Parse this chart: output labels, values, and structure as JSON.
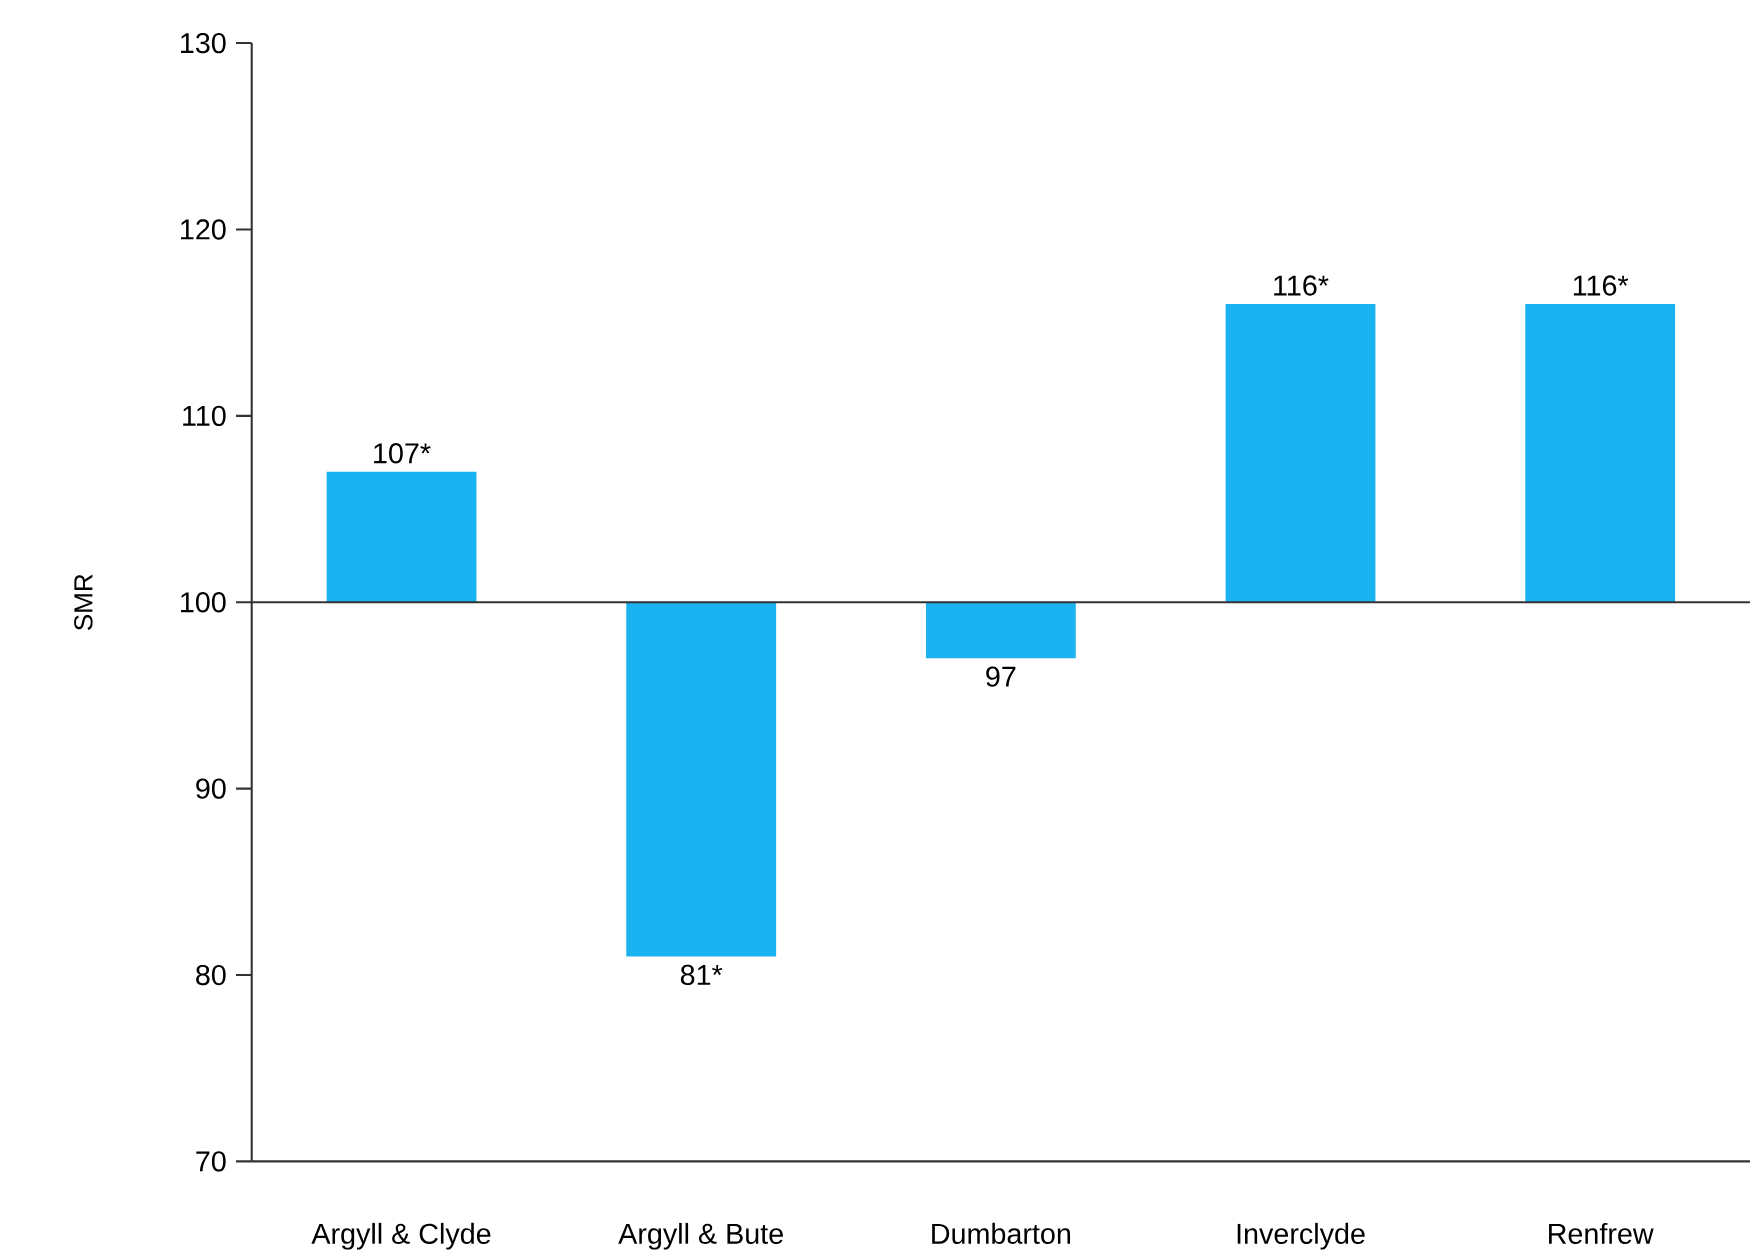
{
  "chart_data": {
    "type": "bar",
    "ylabel": "SMR",
    "categories": [
      "Argyll & Clyde",
      "Argyll & Bute",
      "Dumbarton",
      "Inverclyde",
      "Renfrew"
    ],
    "values": [
      7,
      -19,
      -3,
      16,
      16
    ],
    "base": [
      100,
      100,
      100,
      100,
      100
    ],
    "value_labels": [
      "107*",
      "81*",
      "97",
      "116*",
      "116*"
    ],
    "color": "#1ab2f0",
    "ylim": [
      70,
      130
    ],
    "yticks": [
      70,
      80,
      90,
      100,
      110,
      120,
      130
    ],
    "ref_lines": [
      {
        "axis": "y",
        "value": 100,
        "color": "#333333"
      }
    ],
    "grid": false
  }
}
